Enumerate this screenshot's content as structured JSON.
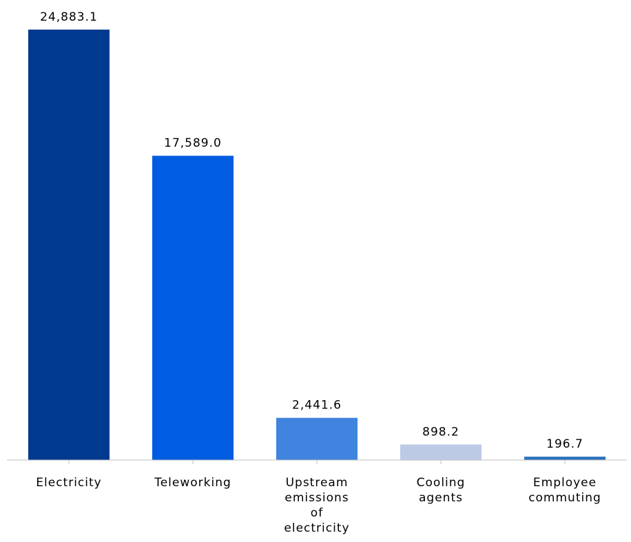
{
  "chart_data": {
    "type": "bar",
    "categories": [
      [
        "Electricity"
      ],
      [
        "Teleworking"
      ],
      [
        "Upstream",
        "emissions",
        "of",
        "electricity"
      ],
      [
        "Cooling",
        "agents"
      ],
      [
        "Employee",
        "commuting"
      ]
    ],
    "values": [
      24883.1,
      17589.0,
      2441.6,
      898.2,
      196.7
    ],
    "value_labels": [
      "24,883.1",
      "17,589.0",
      "2,441.6",
      "898.2",
      "196.7"
    ],
    "colors": [
      "#003a8f",
      "#005ce0",
      "#4184df",
      "#bccae6",
      "#2a72bd"
    ],
    "ylim": [
      0,
      24883.1
    ],
    "grid": false,
    "legend": "none"
  }
}
